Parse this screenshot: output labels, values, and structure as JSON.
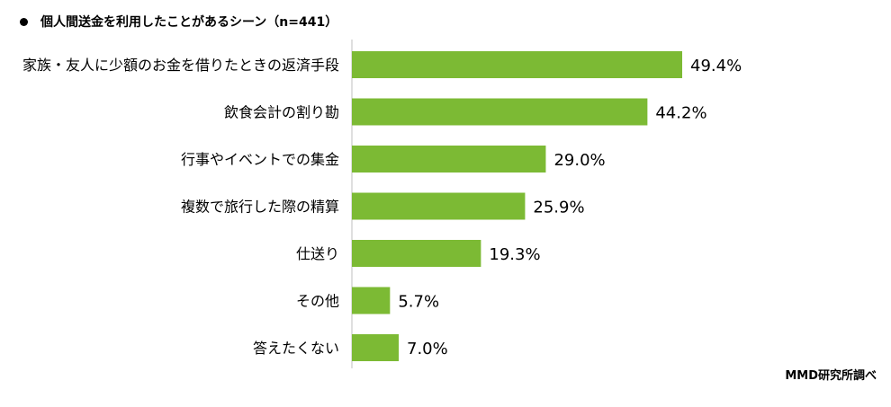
{
  "title": "個人間送金を利用したことがあるシーン（n=441）",
  "source": "MMD研究所調べ",
  "colors": {
    "bar": "#7cba34",
    "axis": "#bfbfbf",
    "text": "#000000"
  },
  "chart_data": {
    "type": "bar",
    "orientation": "horizontal",
    "title": "個人間送金を利用したことがあるシーン（n=441）",
    "categories": [
      "家族・友人に少額のお金を借りたときの返済手段",
      "飲食会計の割り勘",
      "行事やイベントでの集金",
      "複数で旅行した際の精算",
      "仕送り",
      "その他",
      "答えたくない"
    ],
    "values": [
      49.4,
      44.2,
      29.0,
      25.9,
      19.3,
      5.7,
      7.0
    ],
    "value_labels": [
      "49.4%",
      "44.2%",
      "29.0%",
      "25.9%",
      "19.3%",
      "5.7%",
      "7.0%"
    ],
    "unit": "%",
    "xlim": [
      0,
      60
    ],
    "grid": false,
    "legend": "none"
  }
}
